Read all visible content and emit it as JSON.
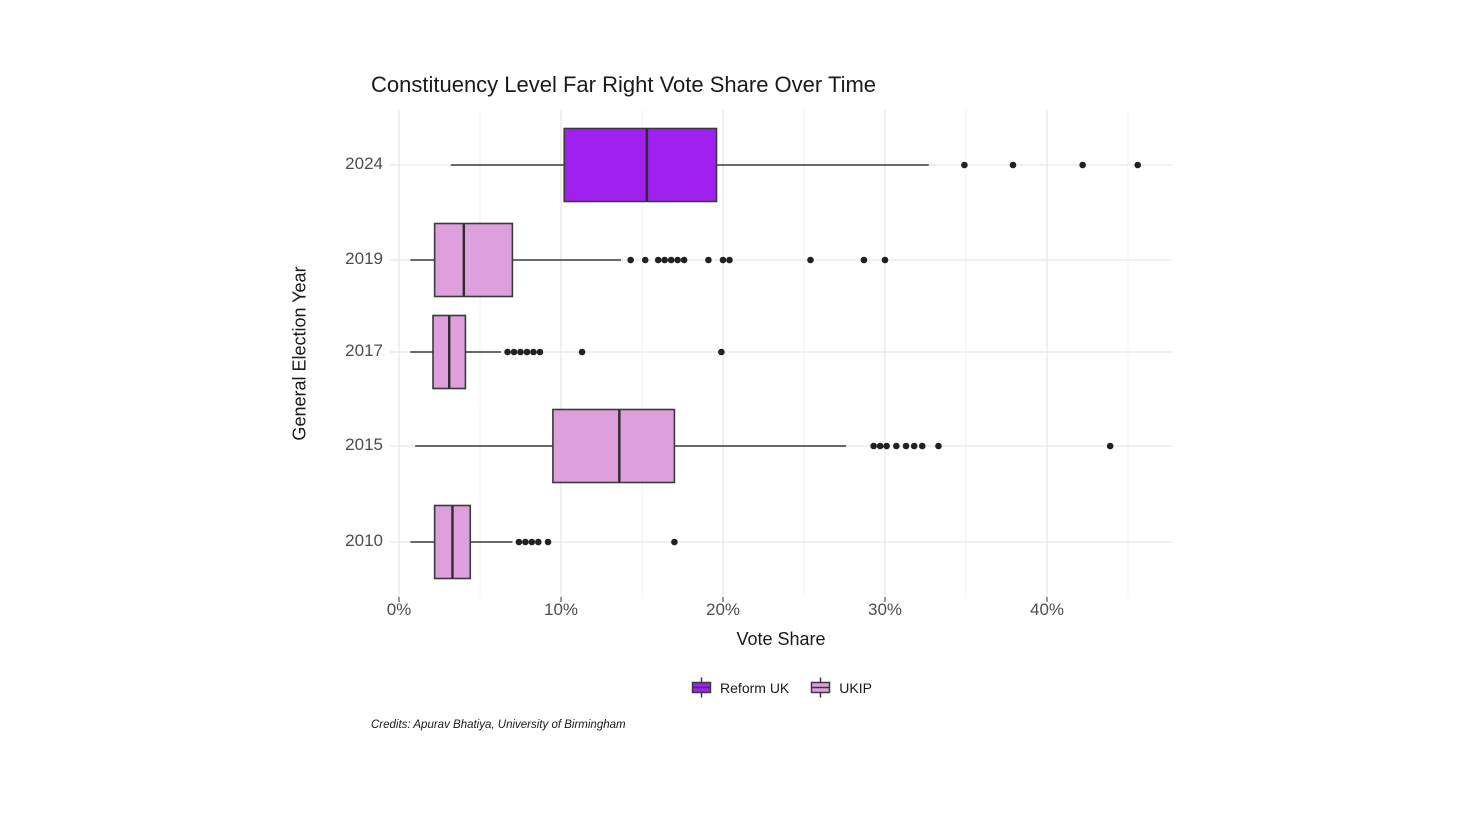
{
  "title": "Constituency Level Far Right Vote Share Over Time",
  "credits": "Credits: Apurav Bhatiya, University of Birmingham",
  "chart_data": {
    "type": "boxplot",
    "orientation": "horizontal",
    "title": "Constituency Level Far Right Vote Share Over Time",
    "xlabel": "Vote Share",
    "ylabel": "General Election Year",
    "xlim": [
      -0.6,
      47.7
    ],
    "grid": true,
    "x_ticks": [
      {
        "value": 0,
        "label": "0%"
      },
      {
        "value": 10,
        "label": "10%"
      },
      {
        "value": 20,
        "label": "20%"
      },
      {
        "value": 30,
        "label": "30%"
      },
      {
        "value": 40,
        "label": "40%"
      }
    ],
    "x_minor_ticks": [
      5,
      15,
      25,
      35,
      45
    ],
    "categories": [
      "2024",
      "2019",
      "2017",
      "2015",
      "2010"
    ],
    "legend": {
      "position": "bottom",
      "entries": [
        {
          "label": "Reform UK",
          "color": "#A020F0"
        },
        {
          "label": "UKIP",
          "color": "#DDA0DD"
        }
      ]
    },
    "series": [
      {
        "year": "2024",
        "party": "Reform UK",
        "color": "#A020F0",
        "whisker_low": 3.2,
        "q1": 10.2,
        "median": 15.3,
        "q3": 19.6,
        "whisker_high": 32.7,
        "outliers": [
          34.9,
          37.9,
          42.2,
          45.6
        ]
      },
      {
        "year": "2019",
        "party": "UKIP",
        "color": "#DDA0DD",
        "whisker_low": 0.7,
        "q1": 2.2,
        "median": 4.0,
        "q3": 7.0,
        "whisker_high": 13.7,
        "outliers": [
          14.3,
          15.2,
          16.0,
          16.4,
          16.8,
          17.2,
          17.6,
          19.1,
          20.0,
          20.4,
          25.4,
          28.7,
          30.0
        ]
      },
      {
        "year": "2017",
        "party": "UKIP",
        "color": "#DDA0DD",
        "whisker_low": 0.7,
        "q1": 2.1,
        "median": 3.1,
        "q3": 4.1,
        "whisker_high": 6.3,
        "outliers": [
          6.7,
          7.1,
          7.5,
          7.9,
          8.3,
          8.7,
          11.3,
          19.9
        ]
      },
      {
        "year": "2015",
        "party": "UKIP",
        "color": "#DDA0DD",
        "whisker_low": 1.0,
        "q1": 9.5,
        "median": 13.6,
        "q3": 17.0,
        "whisker_high": 27.6,
        "outliers": [
          29.3,
          29.7,
          30.1,
          30.7,
          31.3,
          31.8,
          32.3,
          33.3,
          43.9
        ]
      },
      {
        "year": "2010",
        "party": "UKIP",
        "color": "#DDA0DD",
        "whisker_low": 0.7,
        "q1": 2.2,
        "median": 3.3,
        "q3": 4.4,
        "whisker_high": 7.0,
        "outliers": [
          7.4,
          7.8,
          8.2,
          8.6,
          9.2,
          17.0
        ]
      }
    ],
    "styles": {
      "box_border": "#3a3a3a",
      "median_line": "#2d2d2d",
      "outlier": "#212121",
      "gridline_major": "#e7e7e7",
      "gridline_minor": "#f1f1f1",
      "axis_tick": "#333333",
      "axis_text": "#4d4d4d",
      "text": "#1a1a1a",
      "background": "#ffffff"
    }
  }
}
